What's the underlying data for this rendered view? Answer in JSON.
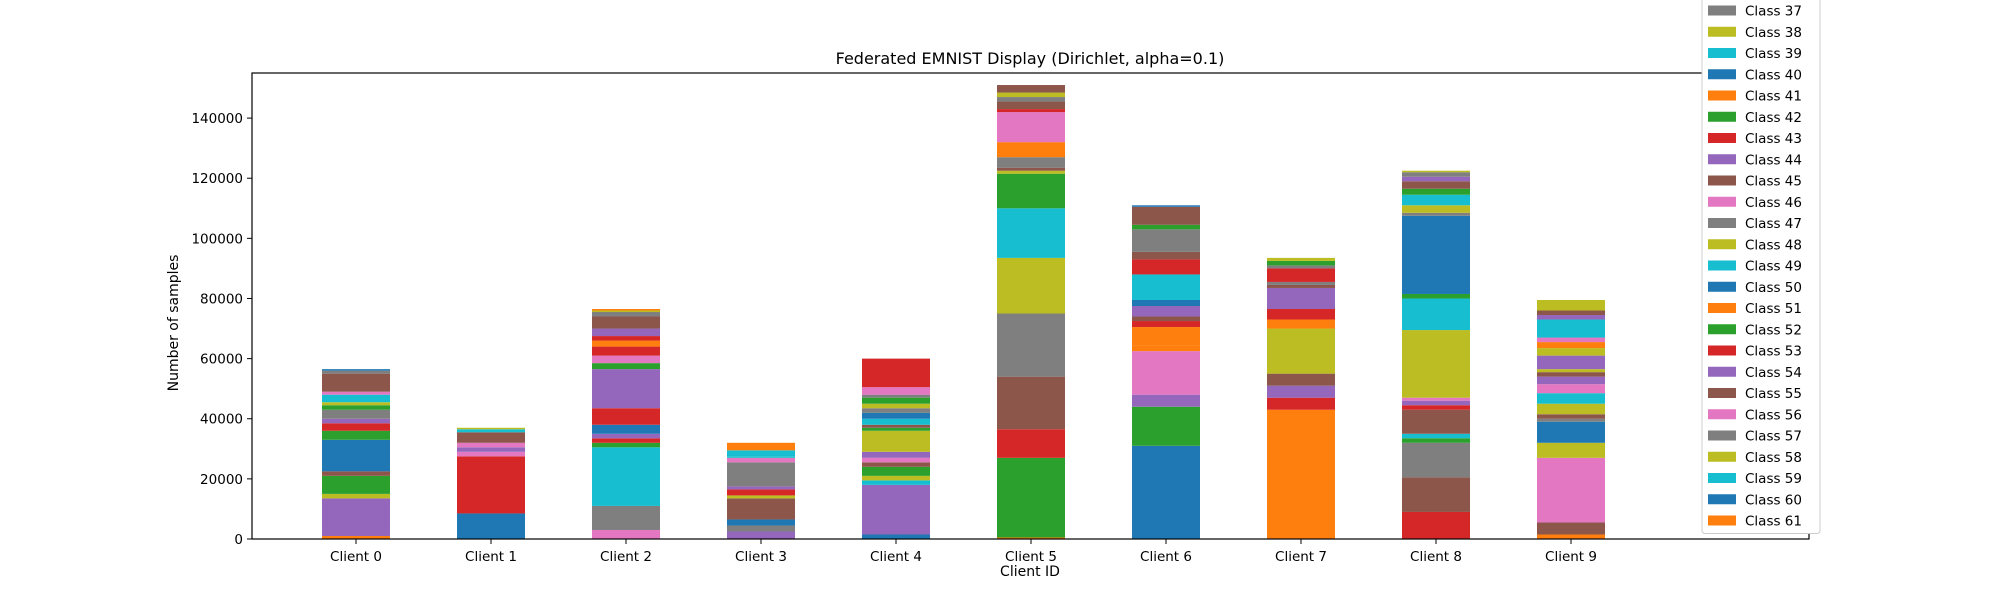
{
  "chart_data": {
    "type": "bar",
    "stacked": true,
    "title": "Federated EMNIST Display (Dirichlet, alpha=0.1)",
    "xlabel": "Client ID",
    "ylabel": "Number of samples",
    "ylim": [
      0,
      155000
    ],
    "yticks": [
      0,
      20000,
      40000,
      60000,
      80000,
      100000,
      120000,
      140000
    ],
    "ytick_labels": [
      "0",
      "20000",
      "40000",
      "60000",
      "80000",
      "100000",
      "120000",
      "140000"
    ],
    "categories": [
      "Client 0",
      "Client 1",
      "Client 2",
      "Client 3",
      "Client 4",
      "Client 5",
      "Client 6",
      "Client 7",
      "Client 8",
      "Client 9"
    ],
    "legend_placement": "upper-right, outside axes (clipped at top)",
    "grid": false,
    "legend": [
      {
        "name": "Class 37",
        "color": "#7f7f7f"
      },
      {
        "name": "Class 38",
        "color": "#bcbd22"
      },
      {
        "name": "Class 39",
        "color": "#17becf"
      },
      {
        "name": "Class 40",
        "color": "#1f77b4"
      },
      {
        "name": "Class 41",
        "color": "#ff7f0e"
      },
      {
        "name": "Class 42",
        "color": "#2ca02c"
      },
      {
        "name": "Class 43",
        "color": "#d62728"
      },
      {
        "name": "Class 44",
        "color": "#9467bd"
      },
      {
        "name": "Class 45",
        "color": "#8c564b"
      },
      {
        "name": "Class 46",
        "color": "#e377c2"
      },
      {
        "name": "Class 47",
        "color": "#7f7f7f"
      },
      {
        "name": "Class 48",
        "color": "#bcbd22"
      },
      {
        "name": "Class 49",
        "color": "#17becf"
      },
      {
        "name": "Class 50",
        "color": "#1f77b4"
      },
      {
        "name": "Class 51",
        "color": "#ff7f0e"
      },
      {
        "name": "Class 52",
        "color": "#2ca02c"
      },
      {
        "name": "Class 53",
        "color": "#d62728"
      },
      {
        "name": "Class 54",
        "color": "#9467bd"
      },
      {
        "name": "Class 55",
        "color": "#8c564b"
      },
      {
        "name": "Class 56",
        "color": "#e377c2"
      },
      {
        "name": "Class 57",
        "color": "#7f7f7f"
      },
      {
        "name": "Class 58",
        "color": "#bcbd22"
      },
      {
        "name": "Class 59",
        "color": "#17becf"
      },
      {
        "name": "Class 60",
        "color": "#1f77b4"
      },
      {
        "name": "Class 61",
        "color": "#ff7f0e"
      }
    ],
    "stacks": [
      [
        [
          1000,
          "#ff7f0e"
        ],
        [
          12500,
          "#9467bd"
        ],
        [
          1500,
          "#bcbd22"
        ],
        [
          6000,
          "#2ca02c"
        ],
        [
          1500,
          "#8c564b"
        ],
        [
          10500,
          "#1f77b4"
        ],
        [
          3000,
          "#2ca02c"
        ],
        [
          2500,
          "#d62728"
        ],
        [
          1500,
          "#9467bd"
        ],
        [
          3000,
          "#7f7f7f"
        ],
        [
          1500,
          "#2ca02c"
        ],
        [
          1000,
          "#bcbd22"
        ],
        [
          2500,
          "#17becf"
        ],
        [
          1000,
          "#e377c2"
        ],
        [
          6000,
          "#8c564b"
        ],
        [
          1000,
          "#7f7f7f"
        ],
        [
          500,
          "#1f77b4"
        ]
      ],
      [
        [
          8500,
          "#1f77b4"
        ],
        [
          19000,
          "#d62728"
        ],
        [
          1500,
          "#e377c2"
        ],
        [
          1500,
          "#9467bd"
        ],
        [
          1500,
          "#e377c2"
        ],
        [
          3500,
          "#8c564b"
        ],
        [
          1000,
          "#17becf"
        ],
        [
          500,
          "#bcbd22"
        ]
      ],
      [
        [
          3000,
          "#e377c2"
        ],
        [
          8000,
          "#7f7f7f"
        ],
        [
          19500,
          "#17becf"
        ],
        [
          1500,
          "#2ca02c"
        ],
        [
          1500,
          "#d62728"
        ],
        [
          1500,
          "#9467bd"
        ],
        [
          3000,
          "#1f77b4"
        ],
        [
          5500,
          "#d62728"
        ],
        [
          13000,
          "#9467bd"
        ],
        [
          2000,
          "#2ca02c"
        ],
        [
          2500,
          "#e377c2"
        ],
        [
          3000,
          "#d62728"
        ],
        [
          2000,
          "#ff7f0e"
        ],
        [
          1500,
          "#d62728"
        ],
        [
          2500,
          "#9467bd"
        ],
        [
          4000,
          "#8c564b"
        ],
        [
          1500,
          "#7f7f7f"
        ],
        [
          500,
          "#bcbd22"
        ],
        [
          500,
          "#ff7f0e"
        ]
      ],
      [
        [
          2500,
          "#9467bd"
        ],
        [
          2000,
          "#7f7f7f"
        ],
        [
          2000,
          "#1f77b4"
        ],
        [
          7000,
          "#8c564b"
        ],
        [
          1000,
          "#bcbd22"
        ],
        [
          2000,
          "#d62728"
        ],
        [
          1000,
          "#9467bd"
        ],
        [
          8000,
          "#7f7f7f"
        ],
        [
          1500,
          "#e377c2"
        ],
        [
          500,
          "#17becf"
        ],
        [
          2000,
          "#17becf"
        ],
        [
          2500,
          "#ff7f0e"
        ]
      ],
      [
        [
          1500,
          "#1f77b4"
        ],
        [
          16500,
          "#9467bd"
        ],
        [
          1500,
          "#17becf"
        ],
        [
          1500,
          "#bcbd22"
        ],
        [
          3000,
          "#2ca02c"
        ],
        [
          1500,
          "#8c564b"
        ],
        [
          1500,
          "#e377c2"
        ],
        [
          2000,
          "#9467bd"
        ],
        [
          7000,
          "#bcbd22"
        ],
        [
          1000,
          "#2ca02c"
        ],
        [
          1000,
          "#8c564b"
        ],
        [
          2000,
          "#17becf"
        ],
        [
          2000,
          "#1f77b4"
        ],
        [
          1500,
          "#7f7f7f"
        ],
        [
          1500,
          "#bcbd22"
        ],
        [
          2000,
          "#2ca02c"
        ],
        [
          1000,
          "#7f7f7f"
        ],
        [
          2500,
          "#e377c2"
        ],
        [
          9500,
          "#d62728"
        ]
      ],
      [
        [
          500,
          "#ff7f0e"
        ],
        [
          26500,
          "#2ca02c"
        ],
        [
          9500,
          "#d62728"
        ],
        [
          17500,
          "#8c564b"
        ],
        [
          21000,
          "#7f7f7f"
        ],
        [
          18500,
          "#bcbd22"
        ],
        [
          16500,
          "#17becf"
        ],
        [
          11500,
          "#2ca02c"
        ],
        [
          1000,
          "#bcbd22"
        ],
        [
          1000,
          "#8c564b"
        ],
        [
          3500,
          "#7f7f7f"
        ],
        [
          5000,
          "#ff7f0e"
        ],
        [
          10000,
          "#e377c2"
        ],
        [
          1000,
          "#d62728"
        ],
        [
          2500,
          "#8c564b"
        ],
        [
          1500,
          "#7f7f7f"
        ],
        [
          1500,
          "#bcbd22"
        ],
        [
          2500,
          "#8c564b"
        ]
      ],
      [
        [
          31000,
          "#1f77b4"
        ],
        [
          13000,
          "#2ca02c"
        ],
        [
          4000,
          "#9467bd"
        ],
        [
          14500,
          "#e377c2"
        ],
        [
          2000,
          "#ff7f0e"
        ],
        [
          6000,
          "#ff7f0e"
        ],
        [
          2000,
          "#d62728"
        ],
        [
          1500,
          "#8c564b"
        ],
        [
          3500,
          "#9467bd"
        ],
        [
          2000,
          "#1f77b4"
        ],
        [
          8500,
          "#17becf"
        ],
        [
          5000,
          "#d62728"
        ],
        [
          2500,
          "#8c564b"
        ],
        [
          7500,
          "#7f7f7f"
        ],
        [
          1500,
          "#2ca02c"
        ],
        [
          6000,
          "#8c564b"
        ],
        [
          500,
          "#1f77b4"
        ]
      ],
      [
        [
          43000,
          "#ff7f0e"
        ],
        [
          4000,
          "#d62728"
        ],
        [
          4000,
          "#9467bd"
        ],
        [
          4000,
          "#8c564b"
        ],
        [
          15000,
          "#bcbd22"
        ],
        [
          3000,
          "#ff7f0e"
        ],
        [
          3500,
          "#d62728"
        ],
        [
          7000,
          "#9467bd"
        ],
        [
          1000,
          "#8c564b"
        ],
        [
          1000,
          "#7f7f7f"
        ],
        [
          4500,
          "#d62728"
        ],
        [
          1000,
          "#7f7f7f"
        ],
        [
          1500,
          "#2ca02c"
        ],
        [
          1000,
          "#bcbd22"
        ]
      ],
      [
        [
          9000,
          "#d62728"
        ],
        [
          11500,
          "#8c564b"
        ],
        [
          11500,
          "#7f7f7f"
        ],
        [
          1500,
          "#2ca02c"
        ],
        [
          1500,
          "#17becf"
        ],
        [
          8000,
          "#8c564b"
        ],
        [
          1500,
          "#d62728"
        ],
        [
          1500,
          "#9467bd"
        ],
        [
          1000,
          "#e377c2"
        ],
        [
          22500,
          "#bcbd22"
        ],
        [
          10500,
          "#17becf"
        ],
        [
          1500,
          "#2ca02c"
        ],
        [
          26000,
          "#1f77b4"
        ],
        [
          1000,
          "#7f7f7f"
        ],
        [
          2500,
          "#bcbd22"
        ],
        [
          3500,
          "#17becf"
        ],
        [
          2000,
          "#2ca02c"
        ],
        [
          2500,
          "#8c564b"
        ],
        [
          1500,
          "#9467bd"
        ],
        [
          1500,
          "#7f7f7f"
        ],
        [
          500,
          "#bcbd22"
        ]
      ],
      [
        [
          1500,
          "#ff7f0e"
        ],
        [
          4000,
          "#8c564b"
        ],
        [
          21500,
          "#e377c2"
        ],
        [
          5000,
          "#bcbd22"
        ],
        [
          7000,
          "#1f77b4"
        ],
        [
          1000,
          "#7f7f7f"
        ],
        [
          1500,
          "#8c564b"
        ],
        [
          3500,
          "#bcbd22"
        ],
        [
          3500,
          "#17becf"
        ],
        [
          3000,
          "#e377c2"
        ],
        [
          2500,
          "#9467bd"
        ],
        [
          1500,
          "#8c564b"
        ],
        [
          1000,
          "#bcbd22"
        ],
        [
          4500,
          "#9467bd"
        ],
        [
          2500,
          "#bcbd22"
        ],
        [
          2000,
          "#ff7f0e"
        ],
        [
          1500,
          "#e377c2"
        ],
        [
          6000,
          "#17becf"
        ],
        [
          1500,
          "#9467bd"
        ],
        [
          1500,
          "#8c564b"
        ],
        [
          3500,
          "#bcbd22"
        ]
      ]
    ]
  }
}
